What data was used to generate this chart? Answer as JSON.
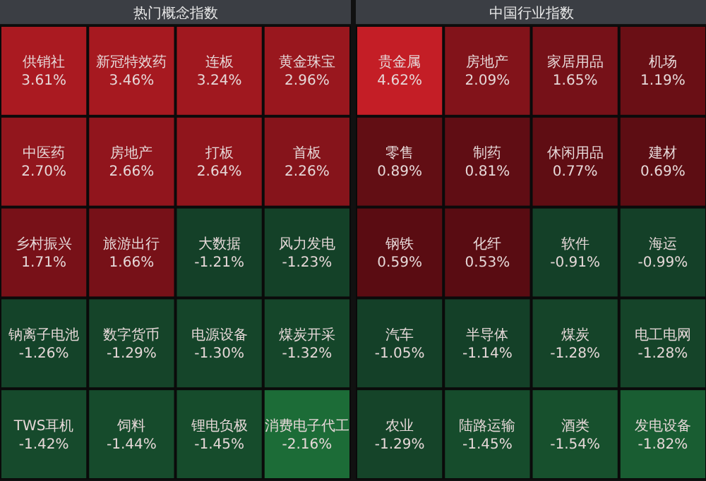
{
  "chart_data": [
    {
      "type": "other",
      "title": "热门概念指数",
      "categories": [
        "供销社",
        "新冠特效药",
        "连板",
        "黄金珠宝",
        "中医药",
        "房地产",
        "打板",
        "首板",
        "乡村振兴",
        "旅游出行",
        "大数据",
        "风力发电",
        "钠离子电池",
        "数字货币",
        "电源设备",
        "煤炭开采",
        "TWS耳机",
        "饲料",
        "锂电负极",
        "消费电子代工"
      ],
      "values": [
        3.61,
        3.46,
        3.24,
        2.96,
        2.7,
        2.66,
        2.64,
        2.26,
        1.71,
        1.66,
        -1.21,
        -1.23,
        -1.26,
        -1.29,
        -1.3,
        -1.32,
        -1.42,
        -1.44,
        -1.45,
        -2.16
      ],
      "value_labels": [
        "3.61%",
        "3.46%",
        "3.24%",
        "2.96%",
        "2.70%",
        "2.66%",
        "2.64%",
        "2.26%",
        "1.71%",
        "1.66%",
        "-1.21%",
        "-1.23%",
        "-1.26%",
        "-1.29%",
        "-1.30%",
        "-1.32%",
        "-1.42%",
        "-1.44%",
        "-1.45%",
        "-2.16%"
      ]
    },
    {
      "type": "other",
      "title": "中国行业指数",
      "categories": [
        "贵金属",
        "房地产",
        "家居用品",
        "机场",
        "零售",
        "制药",
        "休闲用品",
        "建材",
        "钢铁",
        "化纤",
        "软件",
        "海运",
        "汽车",
        "半导体",
        "煤炭",
        "电工电网",
        "农业",
        "陆路运输",
        "酒类",
        "发电设备"
      ],
      "values": [
        4.62,
        2.09,
        1.65,
        1.19,
        0.89,
        0.81,
        0.77,
        0.69,
        0.59,
        0.53,
        -0.91,
        -0.99,
        -1.05,
        -1.14,
        -1.28,
        -1.28,
        -1.29,
        -1.45,
        -1.54,
        -1.82
      ],
      "value_labels": [
        "4.62%",
        "2.09%",
        "1.65%",
        "1.19%",
        "0.89%",
        "0.81%",
        "0.77%",
        "0.69%",
        "0.59%",
        "0.53%",
        "-0.91%",
        "-0.99%",
        "-1.05%",
        "-1.14%",
        "-1.28%",
        "-1.28%",
        "-1.29%",
        "-1.45%",
        "-1.54%",
        "-1.82%"
      ]
    }
  ]
}
